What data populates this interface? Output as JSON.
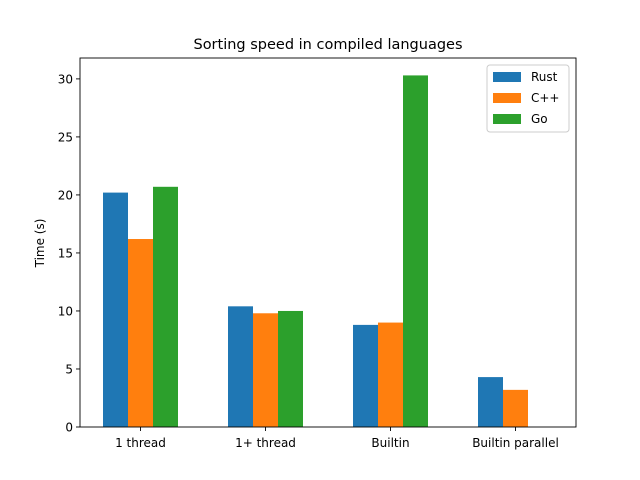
{
  "chart_data": {
    "type": "bar",
    "title": "Sorting speed in compiled languages",
    "xlabel": "",
    "ylabel": "Time (s)",
    "categories": [
      "1 thread",
      "1+ thread",
      "Builtin",
      "Builtin parallel"
    ],
    "series": [
      {
        "name": "Rust",
        "color": "#1f77b4",
        "values": [
          20.2,
          10.4,
          8.8,
          4.3
        ]
      },
      {
        "name": "C++",
        "color": "#ff7f0e",
        "values": [
          16.2,
          9.8,
          9.0,
          3.2
        ]
      },
      {
        "name": "Go",
        "color": "#2ca02c",
        "values": [
          20.7,
          10.0,
          30.3,
          null
        ]
      }
    ],
    "ylim": [
      0,
      31.8
    ],
    "yticks": [
      0,
      5,
      10,
      15,
      20,
      25,
      30
    ],
    "grid": false,
    "legend_position": "top-right"
  }
}
